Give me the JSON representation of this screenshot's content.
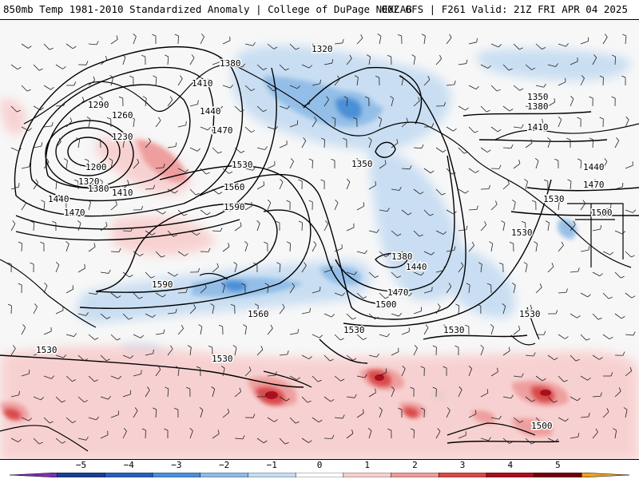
{
  "header": {
    "left_title": "850mb Temp 1981-2010 Standardized Anomaly | College of DuPage NEXLAB",
    "right_title": "00Z GFS | F261 Valid: 21Z FRI APR 04 2025"
  },
  "map": {
    "field": "850mb temperature standardized anomaly with 850mb geopotential height contours",
    "contour_labels": [
      {
        "text": "1200"
      },
      {
        "text": "1230"
      },
      {
        "text": "1260"
      },
      {
        "text": "1290"
      },
      {
        "text": "1320"
      },
      {
        "text": "1320"
      },
      {
        "text": "1350"
      },
      {
        "text": "1350"
      },
      {
        "text": "1380"
      },
      {
        "text": "1380"
      },
      {
        "text": "1380"
      },
      {
        "text": "1380"
      },
      {
        "text": "1410"
      },
      {
        "text": "1410"
      },
      {
        "text": "1410"
      },
      {
        "text": "1440"
      },
      {
        "text": "1440"
      },
      {
        "text": "1440"
      },
      {
        "text": "1440"
      },
      {
        "text": "1470"
      },
      {
        "text": "1470"
      },
      {
        "text": "1470"
      },
      {
        "text": "1470"
      },
      {
        "text": "1500"
      },
      {
        "text": "1500"
      },
      {
        "text": "1500"
      },
      {
        "text": "1530"
      },
      {
        "text": "1530"
      },
      {
        "text": "1530"
      },
      {
        "text": "1530"
      },
      {
        "text": "1530"
      },
      {
        "text": "1530"
      },
      {
        "text": "1530"
      },
      {
        "text": "1530"
      },
      {
        "text": "1560"
      },
      {
        "text": "1560"
      },
      {
        "text": "1590"
      },
      {
        "text": "1590"
      }
    ]
  },
  "colorbar": {
    "ticks": [
      "−5",
      "−4",
      "−3",
      "−2",
      "−1",
      "0",
      "1",
      "2",
      "3",
      "4",
      "5"
    ],
    "colors": [
      "#7b2fb5",
      "#1b3f8f",
      "#2a5fb8",
      "#4b8fd6",
      "#8ebbe6",
      "#c5dcf2",
      "#ffffff",
      "#f8d0d0",
      "#ee9c9c",
      "#d84848",
      "#a81020",
      "#700010",
      "#f0a020"
    ]
  }
}
